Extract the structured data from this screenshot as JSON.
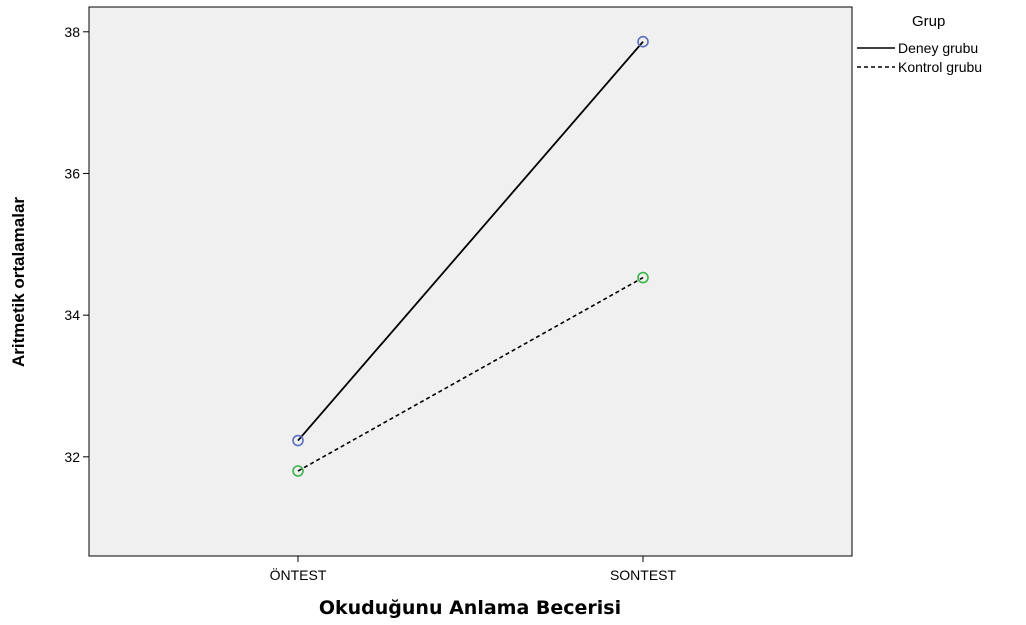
{
  "chart_data": {
    "type": "line",
    "xlabel": "Okuduğunu Anlama Becerisi",
    "ylabel": "Aritmetik ortalamalar",
    "categories": [
      "ÖNTEST",
      "SONTEST"
    ],
    "ylim": [
      30.6,
      38.35
    ],
    "yticks": [
      32,
      34,
      36,
      38
    ],
    "ytick_labels": [
      "32",
      "34",
      "36",
      "38"
    ],
    "grid": false,
    "legend": {
      "title": "Grup",
      "placement": "right-top"
    },
    "series": [
      {
        "name": "Deney grubu",
        "values": [
          32.23,
          37.86
        ],
        "line_style": "solid",
        "marker_color": "#5b6fc0"
      },
      {
        "name": "Kontrol grubu",
        "values": [
          31.8,
          34.53
        ],
        "line_style": "dashed",
        "marker_color": "#3cb44b"
      }
    ],
    "colors": {
      "plot_background": "#f0f0f0",
      "line": "#000000"
    }
  }
}
